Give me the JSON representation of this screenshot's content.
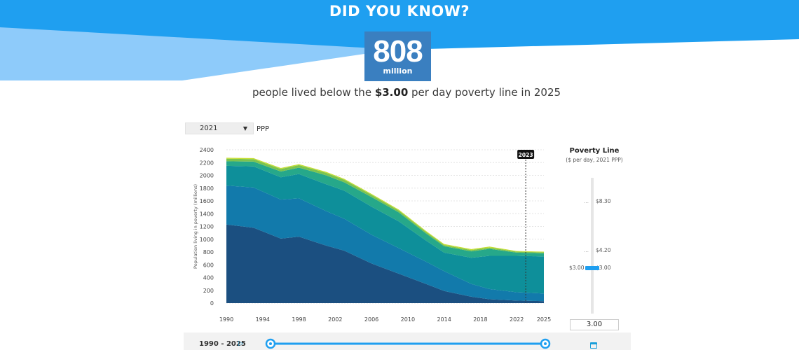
{
  "banner": {
    "headline": "DID YOU KNOW?",
    "colors": {
      "primary": "#1f9ff0",
      "secondary": "#8ecbfa"
    }
  },
  "stat": {
    "number": "808",
    "unit": "million",
    "color": "#3a7fc0"
  },
  "sentence": {
    "before": "people lived below the ",
    "amount": "$3.00",
    "after": " per day poverty line in 2025"
  },
  "controls": {
    "ppp_version": "2021",
    "ppp_label": "PPP"
  },
  "chart_data": {
    "type": "area",
    "stacked": true,
    "ylabel": "Population living in poverty (millions)",
    "ylim": [
      0,
      2400
    ],
    "yticks": [
      0,
      200,
      400,
      600,
      800,
      1000,
      1200,
      1400,
      1600,
      1800,
      2000,
      2200,
      2400
    ],
    "xticks": [
      1990,
      1994,
      1998,
      2002,
      2006,
      2010,
      2014,
      2018,
      2022,
      2025
    ],
    "xlim": [
      1990,
      2025
    ],
    "x": [
      1990,
      1993,
      1996,
      1998,
      2001,
      2003,
      2006,
      2009,
      2012,
      2014,
      2017,
      2019,
      2022,
      2025
    ],
    "series": [
      {
        "color": "#1b4f80",
        "values": [
          1230,
          1180,
          1010,
          1040,
          900,
          820,
          620,
          460,
          300,
          190,
          100,
          60,
          40,
          30
        ]
      },
      {
        "color": "#127aab",
        "values": [
          610,
          630,
          610,
          600,
          540,
          500,
          450,
          400,
          350,
          310,
          200,
          160,
          130,
          120
        ]
      },
      {
        "color": "#0e8f9a",
        "values": [
          310,
          330,
          350,
          380,
          420,
          440,
          440,
          420,
          330,
          290,
          410,
          520,
          570,
          580
        ]
      },
      {
        "color": "#26a88a",
        "values": [
          70,
          75,
          90,
          100,
          140,
          130,
          150,
          140,
          110,
          100,
          100,
          110,
          50,
          50
        ]
      },
      {
        "color": "#7cc34f",
        "values": [
          40,
          40,
          40,
          40,
          40,
          40,
          35,
          30,
          25,
          20,
          20,
          20,
          15,
          15
        ]
      },
      {
        "color": "#c5de32",
        "values": [
          15,
          15,
          15,
          15,
          15,
          15,
          15,
          15,
          15,
          15,
          15,
          15,
          10,
          10
        ]
      }
    ],
    "marker": {
      "year": 2023,
      "label": "2023"
    },
    "grid": true
  },
  "poverty_line": {
    "title": "Poverty Line",
    "subtitle": "($ per day, 2021 PPP)",
    "ticks": [
      "$8.30",
      "$4.20",
      "$3.00"
    ],
    "selected_label": "$3.00",
    "input_value": "3.00"
  },
  "range": {
    "label": "1990 - 2025",
    "start": 1990,
    "end": 2025
  },
  "icons": {
    "play": "play-icon",
    "calendar": "calendar-icon"
  }
}
